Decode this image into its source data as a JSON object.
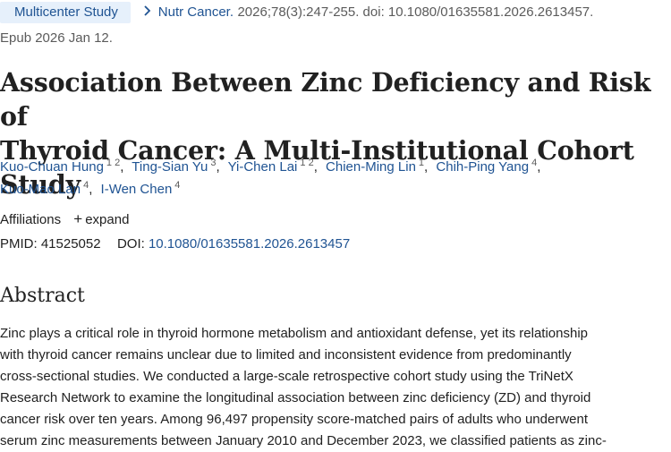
{
  "header": {
    "badge": "Multicenter Study",
    "journal": "Nutr Cancer.",
    "citation": "2026;78(3):247-255. doi: 10.1080/01635581.2026.2613457.",
    "epub": "Epub 2026 Jan 12."
  },
  "title": {
    "line1": "Association Between Zinc Deficiency and Risk of",
    "line2": "Thyroid Cancer: A Multi-Institutional Cohort Study"
  },
  "authors": [
    {
      "name": "Kuo-Chuan Hung",
      "affils": "1 2"
    },
    {
      "name": "Ting-Sian Yu",
      "affils": "3"
    },
    {
      "name": "Yi-Chen Lai",
      "affils": "1 2"
    },
    {
      "name": "Chien-Ming Lin",
      "affils": "1"
    },
    {
      "name": "Chih-Ping Yang",
      "affils": "4"
    },
    {
      "name": "Kuo-Mao Lan",
      "affils": "4"
    },
    {
      "name": "I-Wen Chen",
      "affils": "4"
    }
  ],
  "affiliations": {
    "label": "Affiliations",
    "expand_label": "expand"
  },
  "ids": {
    "pmid_label": "PMID:",
    "pmid": "41525052",
    "doi_label": "DOI:",
    "doi": "10.1080/01635581.2026.2613457"
  },
  "abstract": {
    "heading": "Abstract",
    "lines": [
      "Zinc plays a critical role in thyroid hormone metabolism and antioxidant defense, yet its relationship",
      "with thyroid cancer remains unclear due to limited and inconsistent evidence from predominantly",
      "cross-sectional studies. We conducted a large-scale retrospective cohort study using the TriNetX",
      "Research Network to examine the longitudinal association between zinc deficiency (ZD) and thyroid",
      "cancer risk over ten years. Among 96,497 propensity score-matched pairs of adults who underwent",
      "serum zinc measurements between January 2010 and December 2023, we classified patients as zinc-"
    ]
  },
  "colors": {
    "link": "#205493",
    "badge_bg": "#e6f0fb",
    "text": "#212121",
    "muted": "#5b5b5b"
  }
}
